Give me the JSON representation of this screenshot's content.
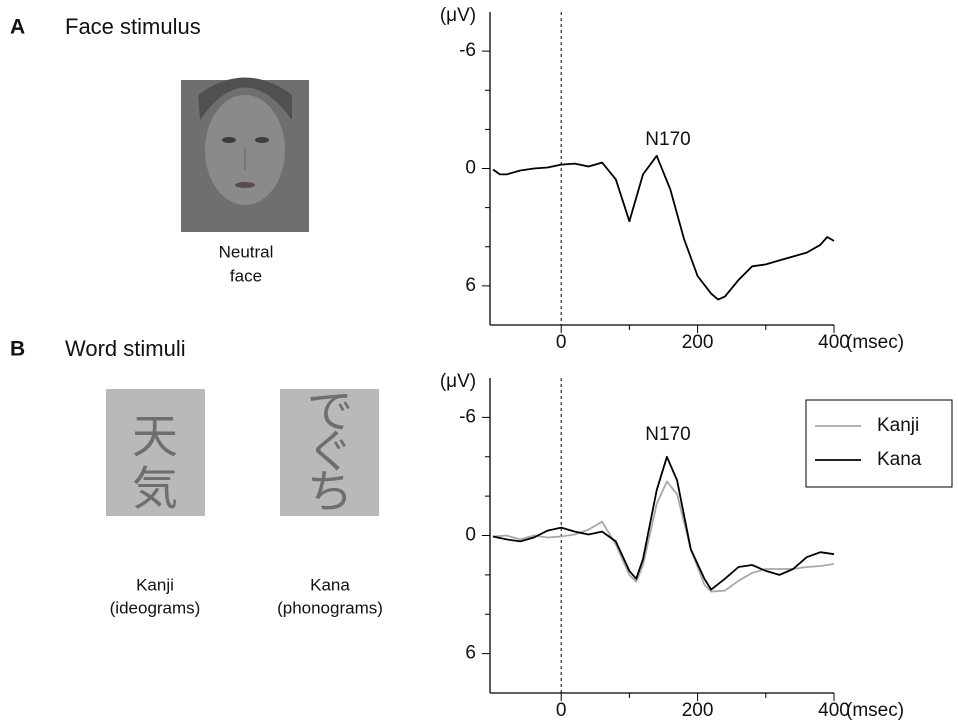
{
  "panels": [
    {
      "letter": "A",
      "title": "Face stimulus",
      "stimuli": [
        {
          "caption": [
            "Neutral",
            "face"
          ]
        }
      ]
    },
    {
      "letter": "B",
      "title": "Word stimuli",
      "stimuli": [
        {
          "glyphs": [
            "天",
            "気"
          ],
          "caption": [
            "Kanji",
            "(ideograms)"
          ]
        },
        {
          "glyphs": [
            "で",
            "ぐ",
            "ち"
          ],
          "caption": [
            "Kana",
            "(phonograms)"
          ]
        }
      ]
    }
  ],
  "chart_data": [
    {
      "type": "line",
      "annotation": "N170",
      "ylabel": "(μV)",
      "xlabel": "(msec)",
      "x": [
        -100,
        -90,
        -80,
        -60,
        -40,
        -20,
        0,
        20,
        40,
        60,
        80,
        100,
        120,
        140,
        160,
        180,
        200,
        220,
        230,
        240,
        260,
        280,
        300,
        320,
        340,
        360,
        380,
        390,
        400
      ],
      "series": [
        {
          "color": "#000000",
          "values": [
            0.05,
            0.3,
            0.3,
            0.1,
            0,
            -0.05,
            -0.2,
            -0.25,
            -0.1,
            -0.3,
            0.55,
            2.7,
            0.3,
            -0.65,
            1.07,
            3.6,
            5.5,
            6.4,
            6.7,
            6.55,
            5.7,
            5.0,
            4.9,
            4.7,
            4.5,
            4.3,
            3.9,
            3.5,
            3.7
          ]
        }
      ],
      "xlim": [
        -100,
        400
      ],
      "xticks": [
        0,
        200,
        400
      ],
      "xminor_ticks": [
        100,
        300
      ],
      "ylim": [
        -8,
        8
      ],
      "y_inverted": true,
      "yticks": [
        -6,
        0,
        6
      ],
      "yminor_ticks": [
        -4,
        -2,
        2,
        4
      ],
      "vline": 0
    },
    {
      "type": "line",
      "annotation": "N170",
      "ylabel": "(μV)",
      "xlabel": "(msec)",
      "x": [
        -100,
        -80,
        -60,
        -40,
        -20,
        0,
        20,
        40,
        60,
        80,
        100,
        110,
        120,
        140,
        155,
        170,
        190,
        210,
        220,
        240,
        260,
        280,
        300,
        320,
        340,
        360,
        380,
        400
      ],
      "series": [
        {
          "name": "Kanji",
          "color": "#a8a8a8",
          "values": [
            0.05,
            0,
            0.2,
            0,
            0.1,
            0.05,
            -0.05,
            -0.3,
            -0.7,
            0.45,
            2.0,
            2.35,
            1.5,
            -1.6,
            -2.75,
            -2.1,
            0.7,
            2.5,
            2.85,
            2.8,
            2.3,
            1.9,
            1.7,
            1.7,
            1.7,
            1.6,
            1.55,
            1.45
          ]
        },
        {
          "name": "Kana",
          "color": "#000000",
          "values": [
            0.05,
            0.2,
            0.3,
            0.1,
            -0.25,
            -0.4,
            -0.2,
            -0.05,
            -0.2,
            0.3,
            1.8,
            2.2,
            1.2,
            -2.3,
            -4.0,
            -2.8,
            0.7,
            2.2,
            2.75,
            2.2,
            1.6,
            1.5,
            1.8,
            2.0,
            1.7,
            1.1,
            0.85,
            0.95
          ]
        }
      ],
      "xlim": [
        -100,
        400
      ],
      "xticks": [
        0,
        200,
        400
      ],
      "xminor_ticks": [
        100,
        300
      ],
      "ylim": [
        -8,
        8
      ],
      "y_inverted": true,
      "yticks": [
        -6,
        0,
        6
      ],
      "yminor_ticks": [
        -4,
        -2,
        2,
        4
      ],
      "vline": 0,
      "legend": "upper right"
    }
  ]
}
